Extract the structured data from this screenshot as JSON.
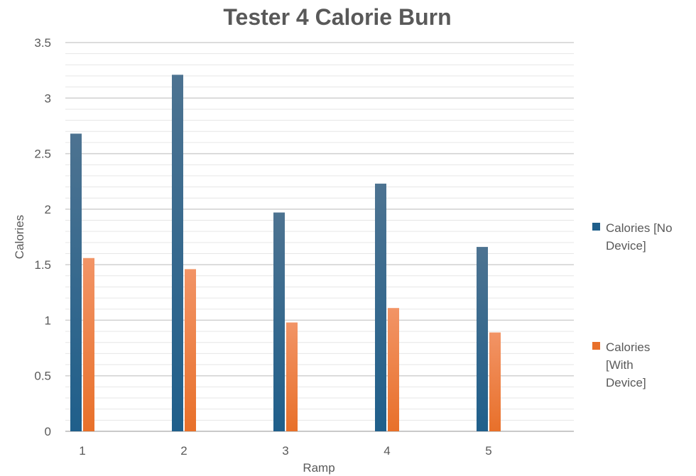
{
  "chart_data": {
    "type": "bar",
    "title": "Tester 4 Calorie Burn",
    "xlabel": "Ramp",
    "ylabel": "Calories",
    "categories": [
      "1",
      "2",
      "3",
      "4",
      "5"
    ],
    "series": [
      {
        "name": "Calories [No\nDevice]",
        "values": [
          2.68,
          3.21,
          1.97,
          2.23,
          1.66
        ],
        "color": "#1f5f8b"
      },
      {
        "name": "Calories\n[With\nDevice]",
        "values": [
          1.56,
          1.46,
          0.98,
          1.11,
          0.89
        ],
        "color": "#e8702a"
      }
    ],
    "ylim": [
      0,
      3.5
    ],
    "yticks": [
      "0",
      "0.5",
      "1",
      "1.5",
      "2",
      "2.5",
      "3",
      "3.5"
    ],
    "grid": true,
    "legend": "right"
  }
}
